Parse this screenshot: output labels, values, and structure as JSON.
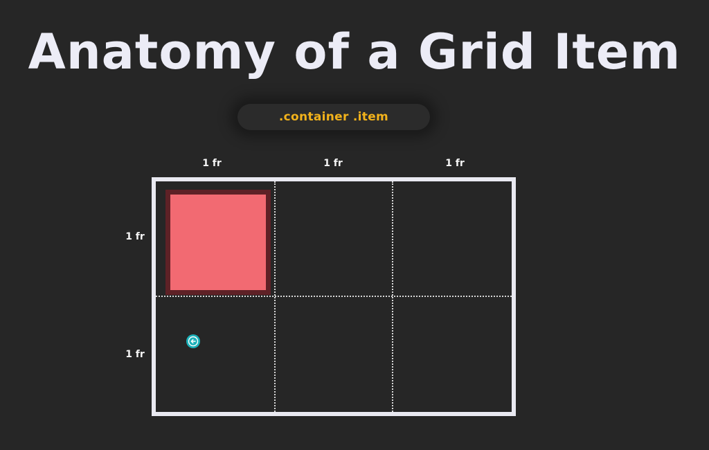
{
  "title": "Anatomy of a Grid Item",
  "selector": ".container .item",
  "grid": {
    "columns": [
      "1 fr",
      "1 fr",
      "1 fr"
    ],
    "rows": [
      "1 fr",
      "1 fr"
    ]
  },
  "colors": {
    "background": "#262626",
    "title": "#ececf6",
    "selector_text": "#f2b21b",
    "container_border": "#e9e9f1",
    "item_fill": "#f26a72",
    "item_border": "#5e2126",
    "cursor": "#1ab0b8"
  },
  "icons": {
    "cursor": "arrow-left-cursor-icon"
  }
}
